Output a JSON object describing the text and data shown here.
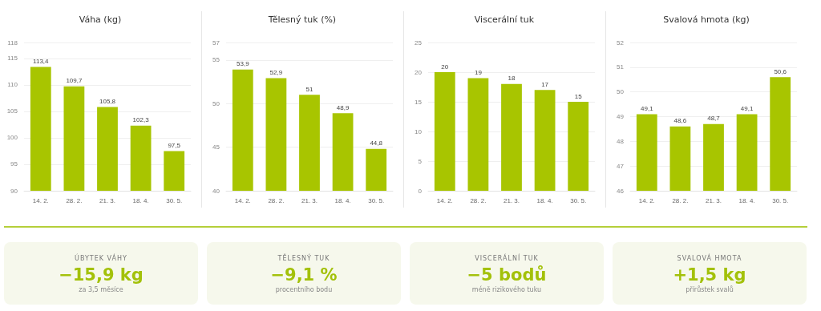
{
  "chart_data": [
    {
      "type": "bar",
      "title": "Váha (kg)",
      "categories": [
        "14. 2.",
        "28. 2.",
        "21. 3.",
        "18. 4.",
        "30. 5."
      ],
      "values": [
        113.4,
        109.7,
        105.8,
        102.3,
        97.5
      ],
      "value_labels": [
        "113,4",
        "109,7",
        "105,8",
        "102,3",
        "97,5"
      ],
      "color": "#a8c500",
      "ylim": [
        90,
        118
      ],
      "yticks": [
        90,
        95,
        100,
        105,
        110,
        115,
        118
      ],
      "grid": "y"
    },
    {
      "type": "bar",
      "title": "Tělesný tuk (%)",
      "categories": [
        "14. 2.",
        "28. 2.",
        "21. 3.",
        "18. 4.",
        "30. 5."
      ],
      "values": [
        53.9,
        52.9,
        51,
        48.9,
        44.8
      ],
      "value_labels": [
        "53,9",
        "52,9",
        "51",
        "48,9",
        "44,8"
      ],
      "color": "#a8c500",
      "ylim": [
        40,
        57
      ],
      "yticks": [
        40,
        45,
        50,
        55,
        57
      ],
      "grid": "y"
    },
    {
      "type": "bar",
      "title": "Viscerální tuk",
      "categories": [
        "14. 2.",
        "28. 2.",
        "21. 3.",
        "18. 4.",
        "30. 5."
      ],
      "values": [
        20,
        19,
        18,
        17,
        15
      ],
      "value_labels": [
        "20",
        "19",
        "18",
        "17",
        "15"
      ],
      "color": "#a8c500",
      "ylim": [
        0,
        25
      ],
      "yticks": [
        0,
        5,
        10,
        15,
        20,
        25
      ],
      "grid": "y"
    },
    {
      "type": "bar",
      "title": "Svalová hmota (kg)",
      "categories": [
        "14. 2.",
        "28. 2.",
        "21. 3.",
        "18. 4.",
        "30. 5."
      ],
      "values": [
        49.1,
        48.6,
        48.7,
        49.1,
        50.6
      ],
      "value_labels": [
        "49,1",
        "48,6",
        "48,7",
        "49,1",
        "50,6"
      ],
      "color": "#a8c500",
      "ylim": [
        46,
        52
      ],
      "yticks": [
        46,
        47,
        48,
        49,
        50,
        51,
        52
      ],
      "grid": "y"
    },
    {
      "type": "other",
      "title": "ÚBYTEK VÁHY",
      "subtitle": "−15,9 kg",
      "annotations": [
        "za 3,5 měsíce"
      ]
    },
    {
      "type": "other",
      "title": "TĚLESNÝ TUK",
      "subtitle": "−9,1 %",
      "annotations": [
        "procentního bodu"
      ]
    },
    {
      "type": "other",
      "title": "VISCERÁLNÍ TUK",
      "subtitle": "−5 bodů",
      "annotations": [
        "méně rizikového tuku"
      ]
    },
    {
      "type": "other",
      "title": "SVALOVÁ HMOTA",
      "subtitle": "+1,5 kg",
      "annotations": [
        "přírůstek svalů"
      ]
    }
  ]
}
